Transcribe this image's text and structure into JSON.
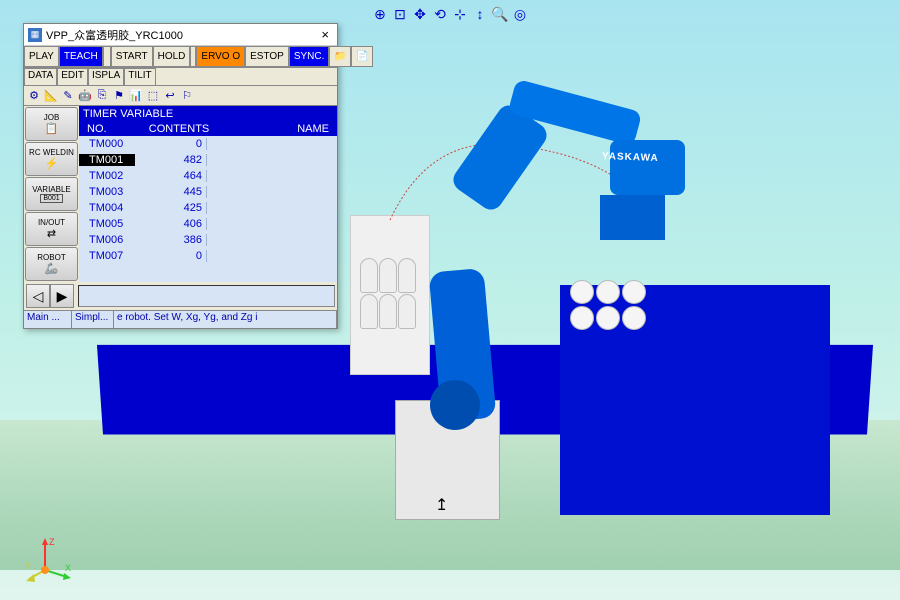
{
  "viewport": {
    "bg_top": "#a8e4f0",
    "bg_bottom": "#e0f5ed",
    "robot_brand": "YASKAWA",
    "robot_color": "#0070e0",
    "conveyor_color": "#0000cc",
    "box_color": "#0010d0"
  },
  "view_tools": [
    "⊕",
    "⊡",
    "✥",
    "⟲",
    "⊹",
    "↕",
    "🔍",
    "◎"
  ],
  "panel": {
    "title": "VPP_众富透明胶_YRC1000",
    "modes": {
      "play": "PLAY",
      "teach": "TEACH",
      "start": "START",
      "hold": "HOLD",
      "servo": "ERVO O",
      "estop": "ESTOP",
      "sync": "SYNC."
    },
    "tabs": [
      "DATA",
      "EDIT",
      "ISPLA",
      "TILIT"
    ],
    "side_buttons": [
      {
        "label": "JOB",
        "sub": ""
      },
      {
        "label": "RC WELDIN",
        "sub": ""
      },
      {
        "label": "VARIABLE",
        "sub": "B001"
      },
      {
        "label": "IN/OUT",
        "sub": ""
      },
      {
        "label": "ROBOT",
        "sub": ""
      }
    ],
    "content_title": "TIMER VARIABLE",
    "columns": {
      "no": "NO.",
      "contents": "CONTENTS",
      "name": "NAME"
    },
    "rows": [
      {
        "no": "TM000",
        "val": "0",
        "sel": false
      },
      {
        "no": "TM001",
        "val": "482",
        "sel": true
      },
      {
        "no": "TM002",
        "val": "464",
        "sel": false
      },
      {
        "no": "TM003",
        "val": "445",
        "sel": false
      },
      {
        "no": "TM004",
        "val": "425",
        "sel": false
      },
      {
        "no": "TM005",
        "val": "406",
        "sel": false
      },
      {
        "no": "TM006",
        "val": "386",
        "sel": false
      },
      {
        "no": "TM007",
        "val": "0",
        "sel": false
      }
    ],
    "status": {
      "s1": "Main ...",
      "s2": "Simpl...",
      "s3": "e robot. Set W, Xg, Yg, and Zg i"
    }
  },
  "axis_labels": {
    "x": "X",
    "y": "Y",
    "z": "Z"
  }
}
